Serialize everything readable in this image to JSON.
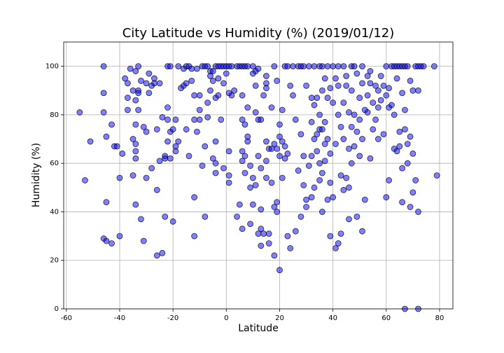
{
  "chart_data": {
    "type": "scatter",
    "title": "City Latitude vs Humidity (%) (2019/01/12)",
    "x_label": "Latitude",
    "y_label": "Humidity (%)",
    "color": "#0000ff",
    "edgecolor": "#000000",
    "alpha": 0.5,
    "grid": true,
    "xlim": [
      -61,
      85
    ],
    "ylim": [
      0,
      110
    ],
    "xticks": [
      -60,
      -40,
      -20,
      0,
      20,
      40,
      60,
      80
    ],
    "yticks": [
      0,
      20,
      40,
      60,
      80,
      100
    ],
    "x": [
      -55,
      -53,
      -51,
      -46,
      -46,
      -46,
      -46,
      -45,
      -45,
      -45,
      -43,
      -43,
      -42,
      -41,
      -40,
      -40,
      -39,
      -38,
      -37,
      -37,
      -37,
      -36,
      -35,
      -35,
      -35,
      -34,
      -34,
      -34,
      -34,
      -34,
      -34,
      -34,
      -33,
      -33,
      -33,
      -33,
      -32,
      -32,
      -31,
      -31,
      -30,
      -30,
      -30,
      -29,
      -29,
      -28,
      -28,
      -27,
      -27,
      -26,
      -26,
      -26,
      -25,
      -25,
      -24,
      -24,
      -23,
      -23,
      -23,
      -22,
      -22,
      -22,
      -22,
      -21,
      -21,
      -21,
      -20,
      -20,
      -19,
      -19,
      -19,
      -18,
      -18,
      -17,
      -16,
      -16,
      -15,
      -15,
      -15,
      -14,
      -14,
      -13,
      -13,
      -12,
      -12,
      -12,
      -12,
      -11,
      -11,
      -10,
      -10,
      -10,
      -9,
      -9,
      -8,
      -8,
      -8,
      -7,
      -7,
      -7,
      -6,
      -6,
      -6,
      -5,
      -5,
      -5,
      -4,
      -4,
      -4,
      -4,
      -4,
      -3,
      -3,
      -3,
      -2,
      -2,
      -1,
      -1,
      -1,
      0,
      0,
      1,
      1,
      1,
      1,
      1,
      2,
      2,
      3,
      4,
      4,
      5,
      5,
      6,
      6,
      6,
      6,
      6,
      6,
      7,
      7,
      7,
      7,
      8,
      8,
      8,
      8,
      9,
      9,
      9,
      10,
      10,
      10,
      10,
      11,
      11,
      11,
      11,
      12,
      12,
      12,
      12,
      13,
      13,
      13,
      13,
      13,
      14,
      14,
      15,
      15,
      15,
      15,
      15,
      15,
      16,
      16,
      16,
      17,
      17,
      17,
      18,
      18,
      18,
      18,
      19,
      19,
      19,
      19,
      20,
      20,
      20,
      20,
      21,
      21,
      21,
      22,
      22,
      22,
      23,
      23,
      23,
      24,
      24,
      25,
      25,
      26,
      26,
      27,
      27,
      28,
      28,
      28,
      29,
      29,
      29,
      30,
      30,
      30,
      31,
      31,
      32,
      32,
      32,
      32,
      33,
      33,
      33,
      33,
      34,
      34,
      34,
      35,
      35,
      35,
      35,
      35,
      36,
      36,
      36,
      36,
      36,
      37,
      37,
      37,
      37,
      38,
      38,
      38,
      38,
      39,
      39,
      39,
      39,
      40,
      40,
      40,
      41,
      41,
      41,
      42,
      42,
      42,
      42,
      43,
      43,
      43,
      44,
      44,
      44,
      44,
      45,
      45,
      45,
      46,
      46,
      46,
      46,
      47,
      47,
      47,
      47,
      48,
      48,
      48,
      49,
      49,
      49,
      50,
      50,
      50,
      51,
      51,
      51,
      51,
      52,
      52,
      53,
      53,
      53,
      54,
      54,
      54,
      55,
      55,
      56,
      56,
      57,
      57,
      57,
      58,
      58,
      59,
      59,
      60,
      60,
      60,
      61,
      61,
      61,
      62,
      62,
      63,
      63,
      63,
      64,
      64,
      64,
      65,
      65,
      65,
      66,
      66,
      66,
      66,
      67,
      67,
      67,
      67,
      68,
      68,
      68,
      69,
      69,
      69,
      70,
      70,
      70,
      71,
      71,
      72,
      72,
      72,
      72,
      73,
      74,
      78,
      79
    ],
    "values": [
      81,
      53,
      69,
      100,
      89,
      81,
      29,
      28,
      44,
      71,
      76,
      27,
      67,
      67,
      54,
      30,
      64,
      95,
      93,
      87,
      82,
      99,
      90,
      70,
      55,
      98,
      86,
      76,
      68,
      65,
      62,
      43,
      100,
      90,
      89,
      82,
      94,
      37,
      28,
      75,
      93,
      73,
      54,
      97,
      89,
      58,
      92,
      95,
      93,
      74,
      49,
      22,
      93,
      61,
      79,
      23,
      63,
      62,
      38,
      100,
      83,
      78,
      69,
      73,
      100,
      62,
      74,
      36,
      78,
      67,
      65,
      100,
      69,
      91,
      92,
      99,
      100,
      93,
      74,
      63,
      100,
      94,
      99,
      88,
      78,
      46,
      30,
      73,
      99,
      88,
      82,
      78,
      59,
      100,
      100,
      67,
      38,
      79,
      100,
      85,
      90,
      96,
      98,
      98,
      62,
      94,
      100,
      87,
      60,
      56,
      69,
      100,
      95,
      88,
      100,
      78,
      100,
      93,
      58,
      100,
      97,
      100,
      89,
      65,
      55,
      52,
      100,
      88,
      90,
      100,
      38,
      43,
      100,
      100,
      88,
      78,
      65,
      61,
      33,
      100,
      76,
      63,
      56,
      69,
      100,
      83,
      71,
      35,
      50,
      59,
      100,
      97,
      43,
      54,
      92,
      98,
      81,
      51,
      31,
      78,
      99,
      63,
      58,
      26,
      41,
      33,
      78,
      88,
      31,
      96,
      93,
      91,
      69,
      61,
      54,
      27,
      31,
      66,
      83,
      66,
      52,
      100,
      68,
      42,
      22,
      94,
      66,
      44,
      40,
      76,
      71,
      63,
      16,
      82,
      69,
      54,
      100,
      67,
      62,
      100,
      64,
      30,
      92,
      25,
      88,
      100,
      78,
      32,
      100,
      57,
      100,
      72,
      38,
      100,
      51,
      63,
      92,
      45,
      42,
      100,
      59,
      87,
      77,
      63,
      46,
      100,
      84,
      70,
      50,
      87,
      65,
      72,
      100,
      80,
      74,
      60,
      53,
      100,
      90,
      74,
      56,
      40,
      95,
      77,
      68,
      61,
      100,
      87,
      70,
      45,
      91,
      64,
      52,
      30,
      100,
      85,
      46,
      95,
      68,
      25,
      100,
      92,
      80,
      27,
      75,
      55,
      31,
      100,
      85,
      70,
      49,
      96,
      54,
      92,
      81,
      66,
      37,
      50,
      100,
      90,
      75,
      60,
      100,
      67,
      80,
      97,
      73,
      38,
      87,
      78,
      63,
      100,
      93,
      70,
      32,
      82,
      45,
      96,
      88,
      81,
      98,
      62,
      93,
      85,
      74,
      92,
      78,
      90,
      83,
      70,
      96,
      86,
      92,
      72,
      100,
      88,
      46,
      91,
      83,
      53,
      100,
      84,
      100,
      80,
      66,
      100,
      95,
      65,
      100,
      73,
      67,
      100,
      89,
      58,
      44,
      100,
      82,
      74,
      0,
      100,
      68,
      60,
      94,
      42,
      71,
      90,
      64,
      48,
      100,
      53,
      100,
      90,
      40,
      0,
      100,
      100,
      100,
      55
    ]
  }
}
